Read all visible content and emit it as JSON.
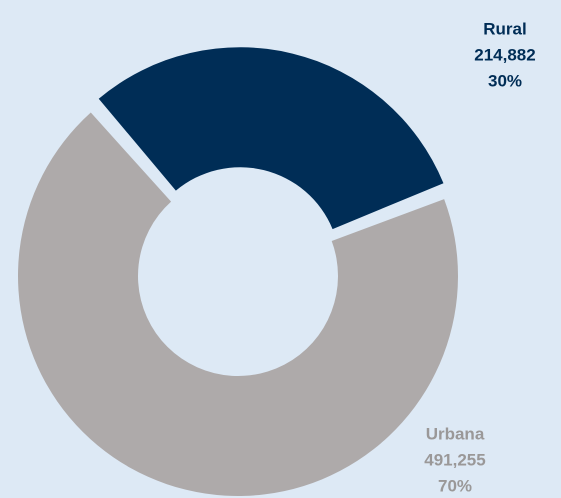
{
  "chart_data": {
    "type": "donut",
    "categories": [
      "Rural",
      "Urbana"
    ],
    "values": [
      214882,
      491255
    ],
    "value_labels": [
      "214,882",
      "491,255"
    ],
    "percents": [
      30,
      70
    ],
    "percent_labels": [
      "30%",
      "70%"
    ],
    "colors": [
      "#002d56",
      "#aeaaaa"
    ],
    "label_colors": [
      "#002d56",
      "#9a9898"
    ]
  }
}
